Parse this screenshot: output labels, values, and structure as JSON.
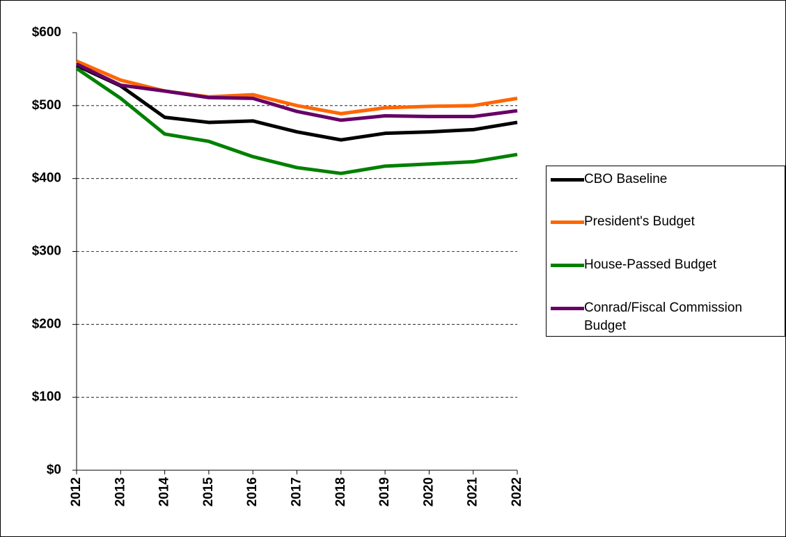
{
  "chart_data": {
    "type": "line",
    "categories": [
      "2012",
      "2013",
      "2014",
      "2015",
      "2016",
      "2017",
      "2018",
      "2019",
      "2020",
      "2021",
      "2022"
    ],
    "series": [
      {
        "name": "CBO Baseline",
        "color": "#000000",
        "values": [
          555,
          527,
          484,
          477,
          479,
          464,
          453,
          462,
          464,
          467,
          477
        ]
      },
      {
        "name": "President's Budget",
        "color": "#ff6600",
        "values": [
          561,
          535,
          520,
          512,
          515,
          500,
          489,
          497,
          499,
          500,
          510
        ]
      },
      {
        "name": "House-Passed Budget",
        "color": "#008000",
        "values": [
          551,
          510,
          461,
          451,
          430,
          415,
          407,
          417,
          420,
          423,
          433
        ]
      },
      {
        "name": "Conrad/Fiscal Commission Budget",
        "color": "#660066",
        "values": [
          557,
          528,
          520,
          511,
          510,
          492,
          480,
          486,
          485,
          485,
          493
        ]
      }
    ],
    "ylim": [
      0,
      600
    ],
    "yticks": [
      {
        "value": 0,
        "label": "$0"
      },
      {
        "value": 100,
        "label": "$100"
      },
      {
        "value": 200,
        "label": "$200"
      },
      {
        "value": 300,
        "label": "$300"
      },
      {
        "value": 400,
        "label": "$400"
      },
      {
        "value": 500,
        "label": "$500"
      },
      {
        "value": 600,
        "label": "$600"
      }
    ],
    "grid": true,
    "legend": "right"
  }
}
